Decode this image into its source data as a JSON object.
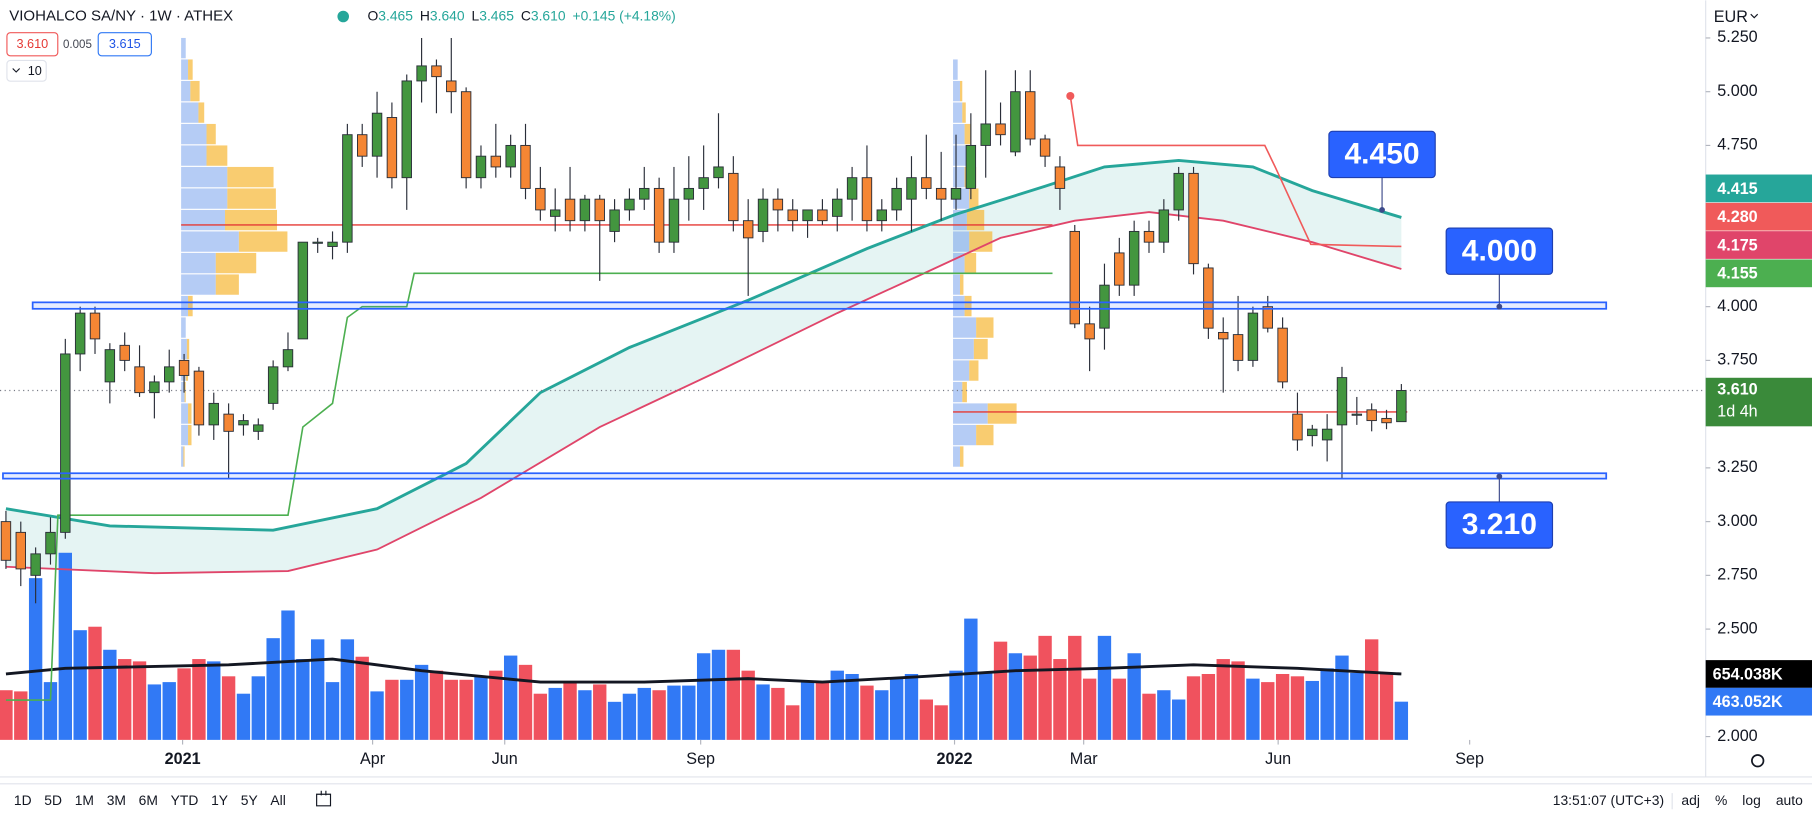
{
  "chart_data": {
    "type": "candlestick",
    "title": "VIOHALCO SA/NY · 1W · ATHEX",
    "ohlc": [
      {
        "key": "O",
        "value": "3.465"
      },
      {
        "key": "H",
        "value": "3.640"
      },
      {
        "key": "L",
        "value": "3.465"
      },
      {
        "key": "C",
        "value": "3.610"
      }
    ],
    "change": "+0.145 (+4.18%)",
    "bid": "3.610",
    "spread": "0.005",
    "ask": "3.615",
    "indicator_count": "10",
    "currency": "EUR",
    "up_color": "#43963f",
    "down_color": "#f58634",
    "volume_up_color": "#3179f5",
    "volume_down_color": "#f0525e",
    "xlim": [
      -0.4,
      114.5
    ],
    "xticks": [
      {
        "value": 11.9,
        "label": "2021"
      },
      {
        "value": 24.7,
        "label": "Apr"
      },
      {
        "value": 33.6,
        "label": "Jun"
      },
      {
        "value": 46.8,
        "label": "Sep"
      },
      {
        "value": 63.9,
        "label": "2022"
      },
      {
        "value": 72.6,
        "label": "Mar"
      },
      {
        "value": 85.7,
        "label": "Jun"
      },
      {
        "value": 98.6,
        "label": "Sep"
      }
    ],
    "ylim": [
      1.85,
      5.425
    ],
    "yticks": [
      {
        "value": 5.25,
        "label": "5.250"
      },
      {
        "value": 5,
        "label": "5.000"
      },
      {
        "value": 4.75,
        "label": "4.750"
      },
      {
        "value": 4,
        "label": "4.000"
      },
      {
        "value": 3.75,
        "label": "3.750"
      },
      {
        "value": 3.25,
        "label": "3.250"
      },
      {
        "value": 3,
        "label": "3.000"
      },
      {
        "value": 2.75,
        "label": "2.750"
      },
      {
        "value": 2.5,
        "label": "2.500"
      },
      {
        "value": 2,
        "label": "2.000"
      }
    ],
    "y2lim": [
      0,
      5300
    ],
    "grid": false,
    "candles": [
      [
        3.0,
        3.05,
        2.78,
        2.82
      ],
      [
        2.95,
        3.0,
        2.7,
        2.78
      ],
      [
        2.75,
        2.88,
        2.62,
        2.85
      ],
      [
        2.85,
        3.02,
        2.8,
        2.95
      ],
      [
        2.95,
        3.85,
        2.92,
        3.78
      ],
      [
        3.78,
        4.0,
        3.7,
        3.97
      ],
      [
        3.97,
        4.0,
        3.78,
        3.85
      ],
      [
        3.65,
        3.83,
        3.55,
        3.8
      ],
      [
        3.82,
        3.88,
        3.7,
        3.75
      ],
      [
        3.72,
        3.82,
        3.58,
        3.6
      ],
      [
        3.6,
        3.68,
        3.48,
        3.65
      ],
      [
        3.65,
        3.8,
        3.6,
        3.72
      ],
      [
        3.75,
        3.78,
        3.6,
        3.68
      ],
      [
        3.7,
        3.72,
        3.4,
        3.45
      ],
      [
        3.45,
        3.6,
        3.38,
        3.55
      ],
      [
        3.5,
        3.55,
        3.2,
        3.42
      ],
      [
        3.45,
        3.5,
        3.4,
        3.47
      ],
      [
        3.42,
        3.48,
        3.38,
        3.45
      ],
      [
        3.55,
        3.75,
        3.52,
        3.72
      ],
      [
        3.72,
        3.88,
        3.7,
        3.8
      ],
      [
        3.85,
        4.3,
        3.85,
        4.3
      ],
      [
        4.3,
        4.32,
        4.25,
        4.3
      ],
      [
        4.28,
        4.35,
        4.22,
        4.3
      ],
      [
        4.3,
        4.85,
        4.25,
        4.8
      ],
      [
        4.8,
        4.85,
        4.65,
        4.7
      ],
      [
        4.7,
        5.0,
        4.6,
        4.9
      ],
      [
        4.88,
        4.95,
        4.55,
        4.6
      ],
      [
        4.6,
        5.08,
        4.45,
        5.05
      ],
      [
        5.05,
        5.25,
        4.95,
        5.12
      ],
      [
        5.12,
        5.15,
        4.9,
        5.07
      ],
      [
        5.05,
        5.25,
        4.9,
        5.0
      ],
      [
        5.0,
        5.02,
        4.55,
        4.6
      ],
      [
        4.6,
        4.75,
        4.55,
        4.7
      ],
      [
        4.7,
        4.85,
        4.6,
        4.65
      ],
      [
        4.65,
        4.8,
        4.6,
        4.75
      ],
      [
        4.75,
        4.85,
        4.5,
        4.55
      ],
      [
        4.55,
        4.65,
        4.4,
        4.45
      ],
      [
        4.42,
        4.55,
        4.35,
        4.45
      ],
      [
        4.5,
        4.65,
        4.35,
        4.4
      ],
      [
        4.4,
        4.52,
        4.35,
        4.5
      ],
      [
        4.5,
        4.52,
        4.12,
        4.4
      ],
      [
        4.35,
        4.5,
        4.3,
        4.45
      ],
      [
        4.45,
        4.55,
        4.4,
        4.5
      ],
      [
        4.5,
        4.65,
        4.45,
        4.55
      ],
      [
        4.55,
        4.6,
        4.25,
        4.3
      ],
      [
        4.3,
        4.65,
        4.25,
        4.5
      ],
      [
        4.5,
        4.7,
        4.4,
        4.55
      ],
      [
        4.55,
        4.75,
        4.45,
        4.6
      ],
      [
        4.6,
        4.9,
        4.55,
        4.65
      ],
      [
        4.62,
        4.7,
        4.35,
        4.4
      ],
      [
        4.4,
        4.5,
        4.05,
        4.32
      ],
      [
        4.35,
        4.55,
        4.3,
        4.5
      ],
      [
        4.5,
        4.55,
        4.35,
        4.45
      ],
      [
        4.45,
        4.5,
        4.35,
        4.4
      ],
      [
        4.4,
        4.45,
        4.32,
        4.45
      ],
      [
        4.45,
        4.5,
        4.38,
        4.4
      ],
      [
        4.42,
        4.55,
        4.35,
        4.5
      ],
      [
        4.5,
        4.65,
        4.4,
        4.6
      ],
      [
        4.6,
        4.75,
        4.35,
        4.4
      ],
      [
        4.4,
        4.5,
        4.35,
        4.45
      ],
      [
        4.45,
        4.6,
        4.4,
        4.55
      ],
      [
        4.5,
        4.7,
        4.35,
        4.6
      ],
      [
        4.6,
        4.8,
        4.5,
        4.55
      ],
      [
        4.55,
        4.72,
        4.4,
        4.5
      ],
      [
        4.5,
        4.8,
        4.45,
        4.55
      ],
      [
        4.55,
        4.9,
        4.5,
        4.75
      ],
      [
        4.75,
        5.1,
        4.6,
        4.85
      ],
      [
        4.85,
        4.95,
        4.75,
        4.8
      ],
      [
        4.72,
        5.1,
        4.7,
        5.0
      ],
      [
        5.0,
        5.1,
        4.75,
        4.78
      ],
      [
        4.78,
        4.8,
        4.65,
        4.7
      ],
      [
        4.65,
        4.7,
        4.45,
        4.55
      ],
      [
        4.35,
        4.38,
        3.9,
        3.92
      ],
      [
        3.92,
        4.0,
        3.7,
        3.85
      ],
      [
        3.9,
        4.2,
        3.8,
        4.1
      ],
      [
        4.25,
        4.32,
        4.05,
        4.1
      ],
      [
        4.1,
        4.4,
        4.05,
        4.35
      ],
      [
        4.35,
        4.4,
        4.25,
        4.3
      ],
      [
        4.3,
        4.5,
        4.25,
        4.45
      ],
      [
        4.45,
        4.65,
        4.4,
        4.62
      ],
      [
        4.62,
        4.65,
        4.15,
        4.2
      ],
      [
        4.18,
        4.2,
        3.85,
        3.9
      ],
      [
        3.88,
        3.95,
        3.6,
        3.85
      ],
      [
        3.87,
        4.05,
        3.7,
        3.75
      ],
      [
        3.75,
        4.0,
        3.72,
        3.97
      ],
      [
        4.0,
        4.05,
        3.88,
        3.9
      ],
      [
        3.9,
        3.95,
        3.62,
        3.65
      ],
      [
        3.5,
        3.6,
        3.33,
        3.38
      ],
      [
        3.4,
        3.45,
        3.35,
        3.43
      ],
      [
        3.38,
        3.5,
        3.28,
        3.43
      ],
      [
        3.45,
        3.72,
        3.2,
        3.67
      ],
      [
        3.5,
        3.58,
        3.45,
        3.5
      ],
      [
        3.52,
        3.55,
        3.42,
        3.47
      ],
      [
        3.48,
        3.52,
        3.43,
        3.46
      ],
      [
        3.465,
        3.64,
        3.465,
        3.61
      ]
    ],
    "volume": [
      542,
      534,
      1315,
      598,
      1490,
      956,
      980,
      821,
      757,
      741,
      582,
      598,
      693,
      757,
      741,
      638,
      518,
      638,
      901,
      1092,
      757,
      893,
      598,
      893,
      773,
      534,
      614,
      614,
      717,
      677,
      614,
      614,
      638,
      677,
      781,
      717,
      518,
      558,
      598,
      542,
      582,
      462,
      518,
      558,
      542,
      574,
      574,
      797,
      821,
      821,
      677,
      582,
      558,
      438,
      598,
      598,
      677,
      654,
      574,
      542,
      622,
      654,
      478,
      438,
      677,
      1036,
      662,
      877,
      797,
      781,
      917,
      757,
      917,
      622,
      917,
      622,
      797,
      518,
      542,
      478,
      638,
      654,
      757,
      741,
      622,
      598,
      654,
      638,
      606,
      693,
      781,
      662,
      893,
      662,
      463.052
    ],
    "volume_ma": {
      "color": "#131722",
      "x": [
        0,
        4,
        15,
        22,
        28,
        36,
        43,
        50,
        55,
        62,
        68,
        74,
        80,
        87,
        94
      ],
      "values": [
        654,
        693,
        717,
        757,
        677,
        598,
        598,
        622,
        598,
        638,
        677,
        693,
        717,
        693,
        654.038
      ]
    },
    "lines": [
      {
        "color": "#26a69a",
        "width": 2.5,
        "x": [
          0,
          7,
          18,
          25,
          31,
          36,
          42,
          50,
          58,
          64,
          70,
          74,
          79,
          84,
          88,
          94
        ],
        "values": [
          3.06,
          2.98,
          2.96,
          3.06,
          3.27,
          3.6,
          3.81,
          4.03,
          4.27,
          4.43,
          4.56,
          4.65,
          4.68,
          4.65,
          4.54,
          4.415
        ]
      },
      {
        "color": "#e0456a",
        "width": 1.6,
        "x": [
          0,
          10,
          19,
          25,
          32,
          40,
          48,
          56,
          62,
          67,
          72,
          77,
          82,
          88,
          94
        ],
        "values": [
          2.79,
          2.76,
          2.77,
          2.87,
          3.11,
          3.44,
          3.7,
          3.97,
          4.16,
          4.32,
          4.4,
          4.44,
          4.4,
          4.3,
          4.175
        ]
      },
      {
        "color": "#4caf50",
        "width": 1.4,
        "x": [
          0,
          3,
          3.5,
          19,
          20,
          22,
          23,
          24,
          27,
          27.5,
          70.5
        ],
        "values": [
          2.17,
          2.17,
          3.03,
          3.03,
          3.44,
          3.55,
          3.95,
          4.0,
          4.0,
          4.155,
          4.155
        ]
      },
      {
        "color": "#f05a5a",
        "width": 1.4,
        "x": [
          71.7,
          72.2,
          84.8,
          85.5,
          87.9,
          94
        ],
        "values": [
          4.98,
          4.75,
          4.75,
          4.65,
          4.29,
          4.28
        ]
      }
    ],
    "band_fill": {
      "between": [
        0,
        1
      ],
      "color": "#26a69a",
      "opacity": 0.12
    },
    "profiles": [
      {
        "x": 11.8,
        "levels": [
          5.2,
          5.1,
          5.0,
          4.9,
          4.8,
          4.7,
          4.6,
          4.5,
          4.4,
          4.3,
          4.2,
          4.1,
          4.0,
          3.9,
          3.8,
          3.7,
          3.6,
          3.5,
          3.4,
          3.3
        ],
        "up": [
          4,
          6,
          8,
          15,
          22,
          22,
          40,
          40,
          38,
          50,
          30,
          30,
          6,
          4,
          5,
          4,
          3,
          6,
          6,
          2
        ],
        "down": [
          0,
          4,
          8,
          5,
          8,
          18,
          40,
          42,
          45,
          42,
          35,
          20,
          4,
          0,
          2,
          2,
          1,
          3,
          3,
          1
        ]
      },
      {
        "x": 63.8,
        "levels": [
          5.1,
          5.0,
          4.9,
          4.8,
          4.7,
          4.6,
          4.5,
          4.4,
          4.3,
          4.2,
          4.1,
          4.0,
          3.9,
          3.8,
          3.7,
          3.6,
          3.5,
          3.4,
          3.3
        ],
        "up": [
          4,
          6,
          8,
          10,
          12,
          10,
          14,
          12,
          14,
          10,
          6,
          10,
          20,
          18,
          14,
          8,
          30,
          20,
          6
        ],
        "down": [
          0,
          2,
          3,
          5,
          6,
          10,
          8,
          15,
          20,
          10,
          3,
          6,
          15,
          12,
          8,
          4,
          25,
          15,
          3
        ]
      }
    ],
    "profile_up_color": "#5b8fe8",
    "profile_down_color": "#f7b733",
    "poc_lines": [
      {
        "price": 4.38,
        "from": 11.8,
        "to": 70.5
      },
      {
        "price": 3.51,
        "from": 63.8,
        "to": 94.4
      }
    ],
    "poc_color": "#e53935",
    "zones": [
      {
        "low": 3.99,
        "high": 4.02,
        "from": 1.8,
        "to": 107.8
      },
      {
        "low": 3.2,
        "high": 3.225,
        "from": -0.2,
        "to": 107.8
      }
    ],
    "zone_color": "#2962ff",
    "callouts": [
      {
        "label": "4.450",
        "value": 4.45,
        "x": 92.7,
        "side": "above"
      },
      {
        "label": "4.000",
        "value": 4.0,
        "x": 100.6,
        "side": "above"
      },
      {
        "label": "3.210",
        "value": 3.21,
        "x": 100.6,
        "side": "below"
      }
    ],
    "price_badges": [
      {
        "value": 4.415,
        "label": "4.415",
        "color": "#26a69a"
      },
      {
        "value": 4.28,
        "label": "4.280",
        "color": "#f05a5a"
      },
      {
        "value": 4.175,
        "label": "4.175",
        "color": "#e0456a"
      },
      {
        "value": 4.155,
        "label": "4.155",
        "color": "#4caf50"
      }
    ],
    "last_price": {
      "value": 3.61,
      "label": "3.610",
      "countdown": "1d 4h",
      "color": "#3a8a3a"
    },
    "volume_badges": [
      {
        "value": 654.038,
        "label": "654.038K",
        "color": "#000000"
      },
      {
        "value": 463.052,
        "label": "463.052K",
        "color": "#3179f5"
      }
    ]
  },
  "toolbar": {
    "ranges": [
      "1D",
      "5D",
      "1M",
      "3M",
      "6M",
      "YTD",
      "1Y",
      "5Y",
      "All"
    ],
    "clock": "13:51:07 (UTC+3)",
    "options": [
      "adj",
      "%",
      "log",
      "auto"
    ]
  }
}
